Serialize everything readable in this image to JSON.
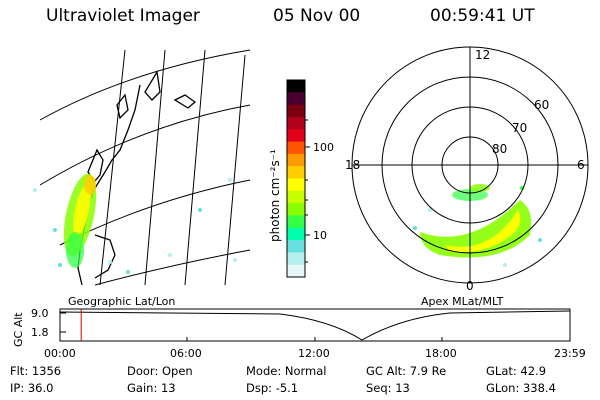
{
  "header": {
    "title": "Ultraviolet Imager",
    "date": "05 Nov 00",
    "time": "00:59:41 UT"
  },
  "colorbar": {
    "unit_label": "photon cm⁻²s⁻¹",
    "ticks": [
      "100",
      "10"
    ],
    "colors": [
      "#000000",
      "#4a0033",
      "#7a0010",
      "#b0001a",
      "#e0001a",
      "#ff5500",
      "#ff9900",
      "#ffcc00",
      "#ffff00",
      "#c8ff00",
      "#88ff00",
      "#33ff44",
      "#00ffaa",
      "#66e0e0",
      "#b3f0ee",
      "#e6f7f7"
    ]
  },
  "left_panel": {
    "caption": "Geographic Lat/Lon"
  },
  "right_panel": {
    "caption": "Apex MLat/MLT",
    "mlt_labels": {
      "top": "12",
      "left": "18",
      "right": "6",
      "bottom": "0"
    },
    "lat_labels": [
      "60",
      "70",
      "80"
    ]
  },
  "timeline": {
    "ylabel": "GC Alt",
    "yticks": [
      "9.0",
      "1.8"
    ],
    "xticks": [
      "00:00",
      "06:00",
      "12:00",
      "18:00",
      "23:59"
    ],
    "current_time_fraction": 0.0415
  },
  "info": {
    "flt": "Flt:  1356",
    "ip": "IP:  36.0",
    "door": "Door:  Open",
    "gain": "Gain:  13",
    "mode": "Mode:  Normal",
    "dsp": "Dsp:     -5.1",
    "gcalt": "GC Alt:  7.9 Re",
    "seq": "Seq:  13",
    "glat": "GLat:   42.9",
    "glon": "GLon:  338.4"
  }
}
